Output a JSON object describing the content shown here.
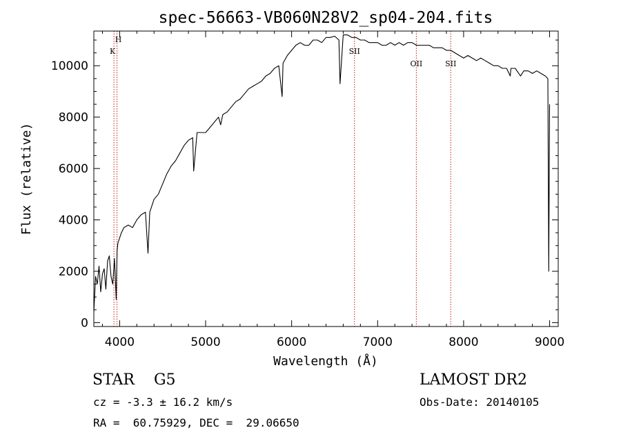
{
  "chart_data": {
    "type": "line",
    "title": "spec-56663-VB060N28V2_sp04-204.fits",
    "xlabel": "Wavelength (Å)",
    "ylabel": "Flux (relative)",
    "xlim": [
      3700,
      9100
    ],
    "ylim": [
      -150,
      11350
    ],
    "xticks": [
      4000,
      5000,
      6000,
      7000,
      8000,
      9000
    ],
    "yticks": [
      0,
      2000,
      4000,
      6000,
      8000,
      10000
    ],
    "grid": false,
    "series": [
      {
        "x": [
          3700,
          3720,
          3740,
          3760,
          3780,
          3800,
          3820,
          3840,
          3860,
          3880,
          3900,
          3920,
          3940,
          3960,
          3970,
          3980,
          4000,
          4020,
          4050,
          4100,
          4150,
          4200,
          4250,
          4300,
          4330,
          4350,
          4400,
          4450,
          4500,
          4550,
          4600,
          4650,
          4700,
          4750,
          4800,
          4850,
          4861,
          4900,
          4950,
          5000,
          5050,
          5100,
          5150,
          5175,
          5200,
          5250,
          5300,
          5350,
          5400,
          5450,
          5500,
          5550,
          5600,
          5650,
          5700,
          5750,
          5800,
          5850,
          5890,
          5900,
          5950,
          6000,
          6050,
          6100,
          6150,
          6200,
          6250,
          6300,
          6350,
          6400,
          6450,
          6500,
          6550,
          6563,
          6600,
          6650,
          6700,
          6750,
          6800,
          6850,
          6900,
          6950,
          7000,
          7050,
          7100,
          7150,
          7200,
          7250,
          7300,
          7350,
          7400,
          7450,
          7500,
          7550,
          7600,
          7650,
          7700,
          7750,
          7800,
          7850,
          7900,
          7950,
          8000,
          8050,
          8100,
          8150,
          8200,
          8250,
          8300,
          8350,
          8400,
          8450,
          8500,
          8542,
          8550,
          8600,
          8662,
          8700,
          8750,
          8800,
          8850,
          8900,
          8950,
          8980,
          8990,
          9000
        ],
        "y": [
          400,
          1800,
          1500,
          2200,
          1200,
          1900,
          2100,
          1300,
          2400,
          2600,
          1800,
          1500,
          2500,
          900,
          2800,
          3100,
          3300,
          3500,
          3700,
          3800,
          3700,
          4000,
          4200,
          4300,
          2700,
          4300,
          4800,
          5000,
          5400,
          5800,
          6100,
          6300,
          6600,
          6900,
          7100,
          7200,
          5900,
          7400,
          7400,
          7400,
          7600,
          7800,
          8000,
          7700,
          8100,
          8200,
          8400,
          8600,
          8700,
          8900,
          9100,
          9200,
          9300,
          9400,
          9600,
          9700,
          9900,
          10000,
          8800,
          10100,
          10400,
          10600,
          10800,
          10900,
          10800,
          10800,
          11000,
          11000,
          10900,
          11100,
          11100,
          11150,
          11000,
          9300,
          11200,
          11200,
          11100,
          11100,
          11000,
          11000,
          10900,
          10900,
          10900,
          10800,
          10800,
          10900,
          10800,
          10900,
          10800,
          10900,
          10900,
          10800,
          10800,
          10800,
          10800,
          10700,
          10700,
          10700,
          10600,
          10600,
          10500,
          10400,
          10300,
          10400,
          10300,
          10200,
          10300,
          10200,
          10100,
          10000,
          10000,
          9900,
          9900,
          9600,
          9900,
          9900,
          9600,
          9800,
          9800,
          9700,
          9800,
          9700,
          9600,
          9500,
          2000,
          8500
        ]
      }
    ],
    "lines": [
      {
        "label": "H",
        "x": 3969
      },
      {
        "label": "K",
        "x": 3934
      },
      {
        "label": "SII",
        "x": 6731
      },
      {
        "label": "OII",
        "x": 7450
      },
      {
        "label": "SII",
        "x": 7850
      }
    ]
  },
  "info": {
    "obj_class": "STAR    G5",
    "survey": "LAMOST DR2",
    "cz": "cz = -3.3 ± 16.2 km/s",
    "obs_date": "Obs-Date: 20140105",
    "radec": "RA =  60.75929, DEC =  29.06650"
  }
}
